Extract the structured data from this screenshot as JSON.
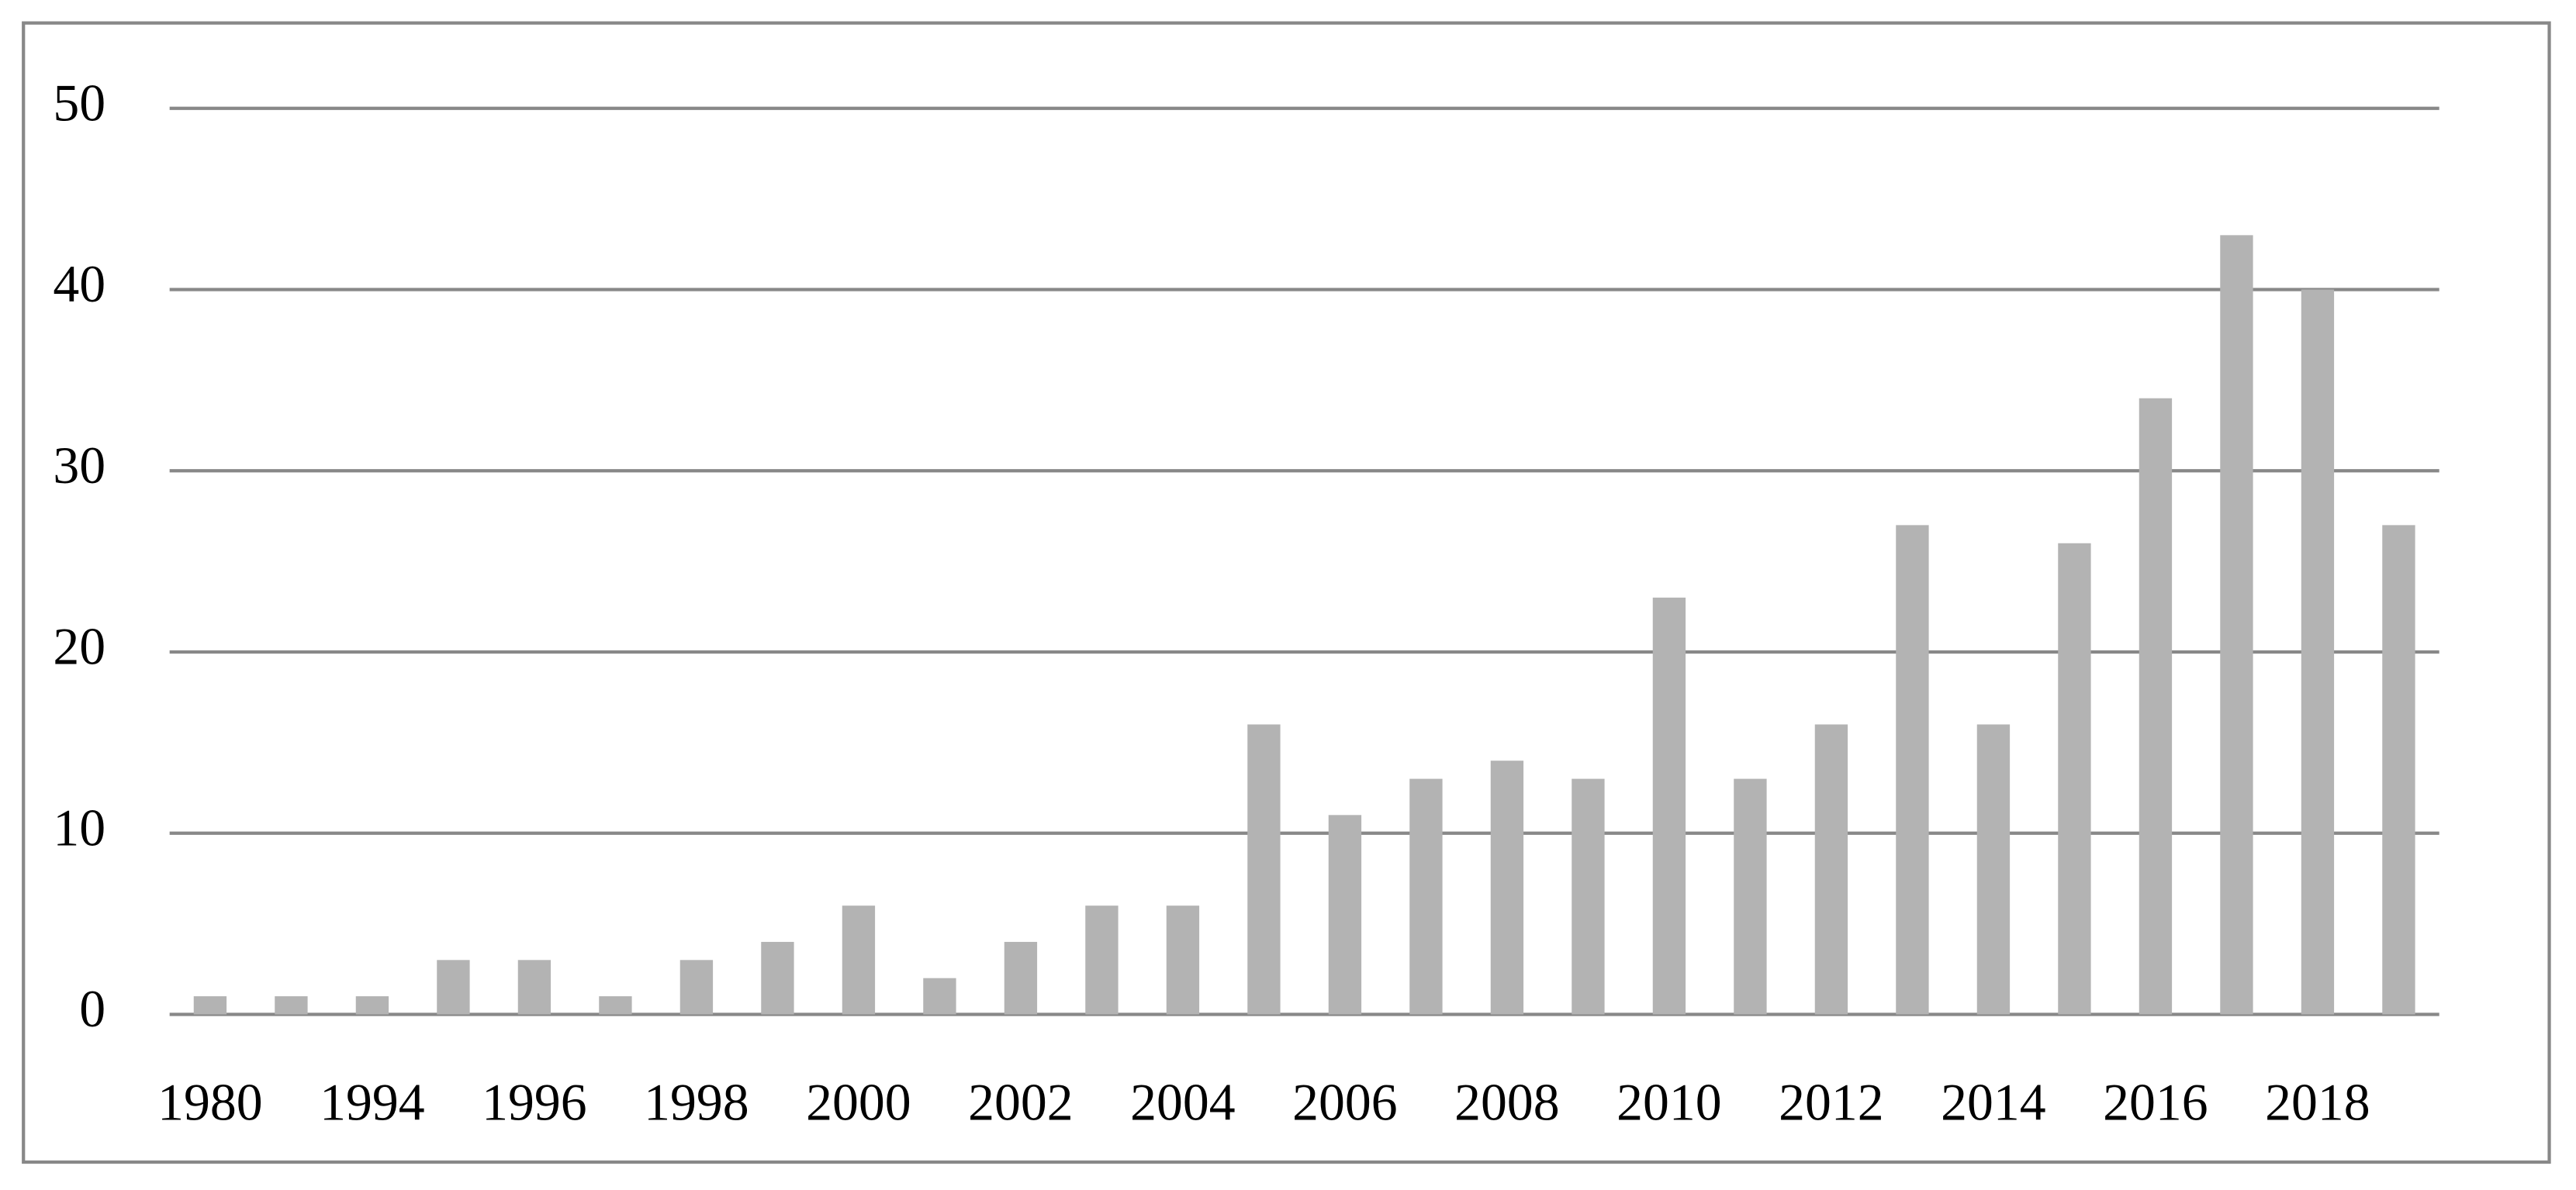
{
  "chart_data": {
    "type": "bar",
    "categories": [
      "1980",
      null,
      "1994",
      null,
      "1996",
      null,
      "1998",
      null,
      "2000",
      null,
      "2002",
      null,
      "2004",
      null,
      "2006",
      null,
      "2008",
      null,
      "2010",
      null,
      "2012",
      null,
      "2014",
      null,
      "2016",
      null,
      "2018",
      null
    ],
    "values": [
      1,
      1,
      1,
      3,
      3,
      1,
      3,
      4,
      6,
      2,
      4,
      6,
      6,
      16,
      11,
      13,
      14,
      13,
      23,
      13,
      16,
      27,
      16,
      26,
      34,
      43,
      40,
      27
    ],
    "color": "#b3b3b3",
    "ylim": [
      0,
      50
    ],
    "yticks": [
      0,
      10,
      20,
      30,
      40,
      50
    ],
    "grid": true
  }
}
